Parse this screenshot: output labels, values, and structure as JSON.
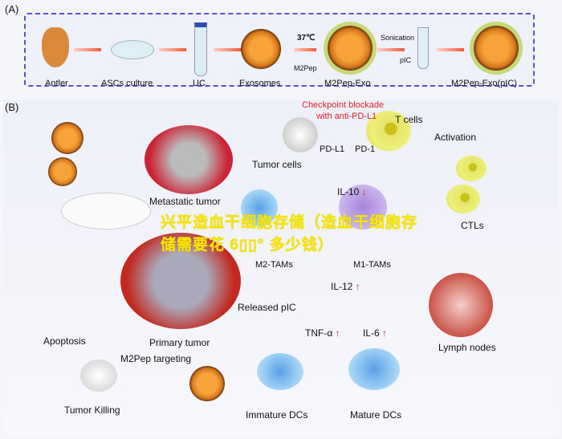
{
  "panel_a": {
    "label": "(A)",
    "steps": [
      "Antler",
      "ASCs culture",
      "UC",
      "Exosomes",
      "M2Pep-Exo",
      "M2Pep-Exo(pIC)"
    ],
    "temp": "37℃",
    "m2pep": "M2Pep",
    "sonication": "Sonication",
    "pic": "pIC"
  },
  "panel_b": {
    "label": "(B)",
    "checkpoint": "Checkpoint blockade",
    "checkpoint2": "with anti-PD-L1",
    "t_cells": "T cells",
    "pd_l1": "PD-L1",
    "pd_1": "PD-1",
    "tumor_cells": "Tumor cells",
    "activation": "Activation",
    "metastatic": "Metastatic tumor",
    "il10": "IL-10",
    "m2": "M2-TAMs",
    "m1": "M1-TAMs",
    "ctls": "CTLs",
    "il12": "IL-12",
    "released": "Released pIC",
    "primary": "Primary tumor",
    "targeting": "M2Pep targeting",
    "apoptosis": "Apoptosis",
    "killing": "Tumor Killing",
    "tnf": "TNF-α",
    "il6": "IL-6",
    "lymph": "Lymph nodes",
    "immature": "Immature DCs",
    "mature": "Mature DCs",
    "down": "↓",
    "up": "↑"
  },
  "overlay": {
    "text": "兴平造血干细胞存储（造血干细胞存储需要花 6▯▯° 多少钱）"
  },
  "colors": {
    "border": "#5a4fd8",
    "red_text": "#e0202a",
    "overlay": "#f6e600"
  }
}
